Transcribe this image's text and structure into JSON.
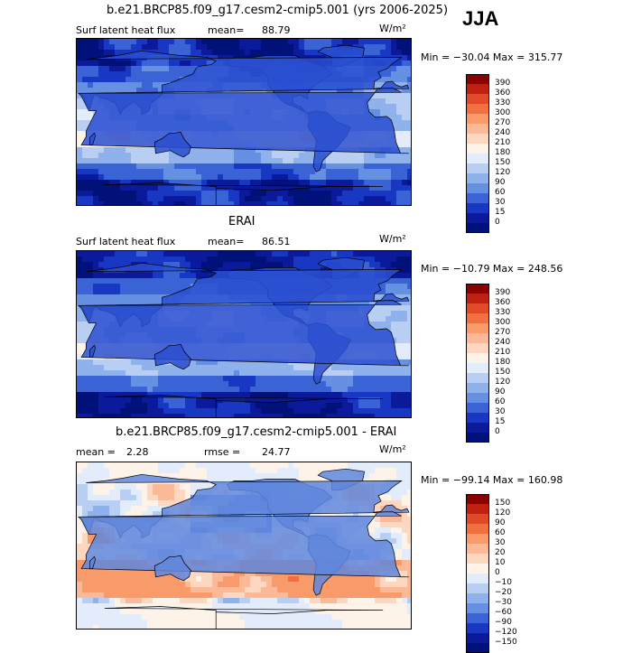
{
  "season": "JJA",
  "units": "W/m²",
  "land_fill": "#d7e3f3",
  "panels": [
    {
      "title": "b.e21.BRCP85.f09_g17.cesm2-cmip5.001 (yrs 2006-2025)",
      "left_label": "Surf latent heat flux",
      "stat_label": "mean=",
      "stat_value": "88.79",
      "minmax": "Min = −30.04  Max = 315.77",
      "scheme": "abs"
    },
    {
      "title": "ERAI",
      "left_label": "Surf latent heat flux",
      "stat_label": "mean=",
      "stat_value": "86.51",
      "minmax": "Min = −10.79  Max = 248.56",
      "scheme": "abs"
    },
    {
      "title": "b.e21.BRCP85.f09_g17.cesm2-cmip5.001 - ERAI",
      "left_label": "mean =",
      "left_value": "2.28",
      "stat_label": "rmse =",
      "stat_value": "24.77",
      "minmax": "Min = −99.14  Max = 160.98",
      "scheme": "diff"
    }
  ],
  "colorbar_abs": {
    "levels": [
      "390",
      "360",
      "330",
      "300",
      "270",
      "240",
      "210",
      "180",
      "150",
      "120",
      "90",
      "60",
      "30",
      "15",
      "0"
    ],
    "colors": [
      "#8b0000",
      "#c02010",
      "#e04a28",
      "#f27040",
      "#f89a6a",
      "#fbb998",
      "#fdd7c0",
      "#fdf3e8",
      "#e2ecfa",
      "#b8cff3",
      "#8fb1ec",
      "#6690e2",
      "#3a64d6",
      "#1838c4",
      "#0a1a9a",
      "#00127a"
    ]
  },
  "colorbar_diff": {
    "levels": [
      "150",
      "120",
      "90",
      "60",
      "30",
      "20",
      "10",
      "0",
      "−10",
      "−20",
      "−30",
      "−60",
      "−90",
      "−120",
      "−150"
    ],
    "colors": [
      "#8b0000",
      "#c02010",
      "#e04a28",
      "#f27040",
      "#f89a6a",
      "#fbb998",
      "#fdd7c0",
      "#fdf3e8",
      "#e2ecfa",
      "#b8cff3",
      "#8fb1ec",
      "#6690e2",
      "#3a64d6",
      "#1838c4",
      "#0a1a9a",
      "#00127a"
    ]
  },
  "chart_data": [
    {
      "type": "heatmap",
      "title": "b.e21.BRCP85.f09_g17.cesm2-cmip5.001 (yrs 2006-2025)",
      "variable": "Surf latent heat flux",
      "units": "W/m²",
      "mean": 88.79,
      "min": -30.04,
      "max": 315.77,
      "contour_levels": [
        0,
        15,
        30,
        60,
        90,
        120,
        150,
        180,
        210,
        240,
        270,
        300,
        330,
        360,
        390
      ]
    },
    {
      "type": "heatmap",
      "title": "ERAI",
      "variable": "Surf latent heat flux",
      "units": "W/m²",
      "mean": 86.51,
      "min": -10.79,
      "max": 248.56,
      "contour_levels": [
        0,
        15,
        30,
        60,
        90,
        120,
        150,
        180,
        210,
        240,
        270,
        300,
        330,
        360,
        390
      ]
    },
    {
      "type": "heatmap",
      "title": "b.e21.BRCP85.f09_g17.cesm2-cmip5.001 - ERAI",
      "units": "W/m²",
      "mean": 2.28,
      "rmse": 24.77,
      "min": -99.14,
      "max": 160.98,
      "contour_levels": [
        -150,
        -120,
        -90,
        -60,
        -30,
        -20,
        -10,
        0,
        10,
        20,
        30,
        60,
        90,
        120,
        150
      ]
    }
  ]
}
